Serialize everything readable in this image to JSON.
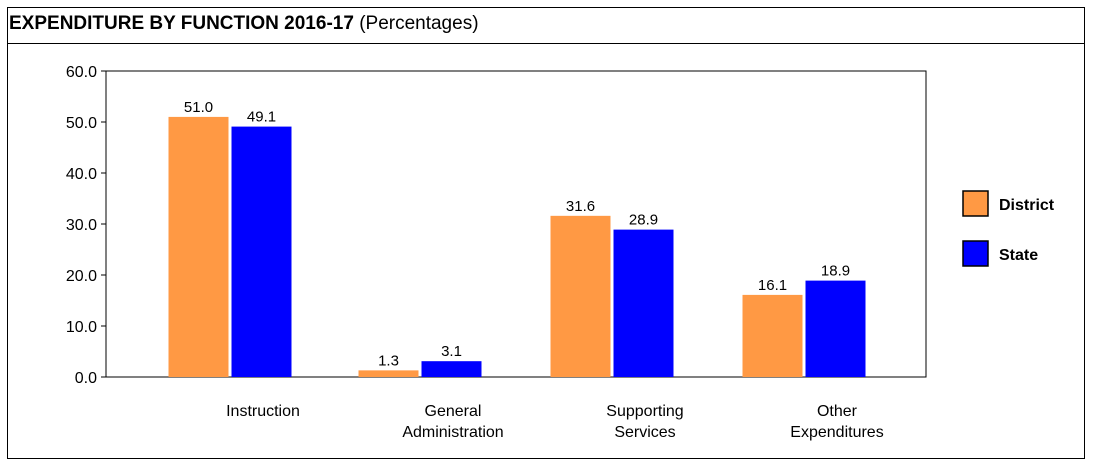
{
  "chart_data": {
    "type": "bar",
    "title": "EXPENDITURE BY FUNCTION 2016-17",
    "subtitle": "(Percentages)",
    "categories": [
      [
        "Instruction"
      ],
      [
        "General",
        "Administration"
      ],
      [
        "Supporting",
        "Services"
      ],
      [
        "Other",
        "Expenditures"
      ]
    ],
    "series": [
      {
        "name": "District",
        "color": "#FF9944",
        "values": [
          51.0,
          1.3,
          31.6,
          16.1
        ],
        "labels": [
          "51.0",
          "1.3",
          "31.6",
          "16.1"
        ]
      },
      {
        "name": "State",
        "color": "#0000FF",
        "values": [
          49.1,
          3.1,
          28.9,
          18.9
        ],
        "labels": [
          "49.1",
          "3.1",
          "28.9",
          "18.9"
        ]
      }
    ],
    "ylim": [
      0,
      60
    ],
    "yticks": [
      "0.0",
      "10.0",
      "20.0",
      "30.0",
      "40.0",
      "50.0",
      "60.0"
    ],
    "grid": false,
    "legend_position": "right"
  }
}
